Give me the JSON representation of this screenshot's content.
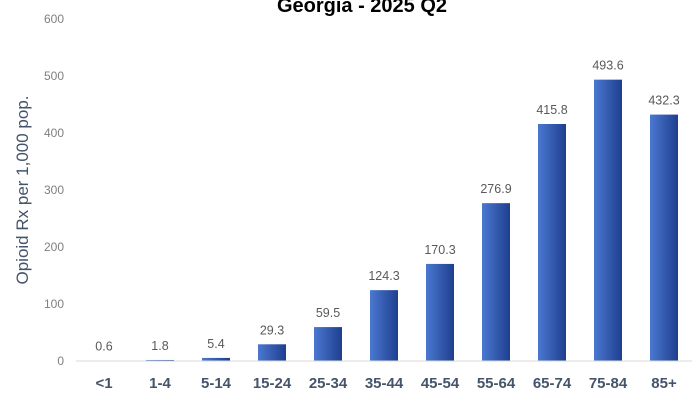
{
  "chart_data": {
    "type": "bar",
    "title": "Georgia - 2025 Q2",
    "xlabel": "",
    "ylabel": "Opioid Rx per 1,000 pop.",
    "ylim": [
      0,
      600
    ],
    "yticks": [
      "0",
      "100",
      "200",
      "300",
      "400",
      "500",
      "600"
    ],
    "categories": [
      "<1",
      "1-4",
      "5-14",
      "15-24",
      "25-34",
      "35-44",
      "45-54",
      "55-64",
      "65-74",
      "75-84",
      "85+"
    ],
    "values": [
      0.6,
      1.8,
      5.4,
      29.3,
      59.5,
      124.3,
      170.3,
      276.9,
      415.8,
      493.6,
      432.3
    ],
    "data_labels": [
      "0.6",
      "1.8",
      "5.4",
      "29.3",
      "59.5",
      "124.3",
      "170.3",
      "276.9",
      "415.8",
      "493.6",
      "432.3"
    ],
    "grid": false,
    "legend": "none",
    "bar_color_light": "#4a78d0",
    "bar_color_dark": "#1f3f8f",
    "axis_color": "#d9d9d9"
  }
}
